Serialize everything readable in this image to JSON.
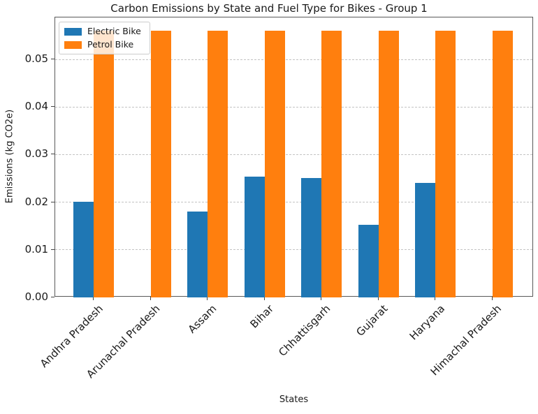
{
  "chart_data": {
    "type": "bar",
    "title": "Carbon Emissions by State and Fuel Type for Bikes - Group 1",
    "xlabel": "States",
    "ylabel": "Emissions (kg CO2e)",
    "categories": [
      "Andhra Pradesh",
      "Arunachal Pradesh",
      "Assam",
      "Bihar",
      "Chhattisgarh",
      "Gujarat",
      "Haryana",
      "Himachal Pradesh"
    ],
    "series": [
      {
        "name": "Electric Bike",
        "color": "#1f77b4",
        "values": [
          0.0201,
          0,
          0.0181,
          0.0253,
          0.0251,
          0.0153,
          0.0241,
          0
        ]
      },
      {
        "name": "Petrol Bike",
        "color": "#ff7f0e",
        "values": [
          0.056,
          0.056,
          0.056,
          0.056,
          0.056,
          0.056,
          0.056,
          0.056
        ]
      }
    ],
    "ylim": [
      0,
      0.0588
    ],
    "yticks": [
      0,
      0.01,
      0.02,
      0.03,
      0.04,
      0.05
    ],
    "ytick_labels": [
      "0.00",
      "0.01",
      "0.02",
      "0.03",
      "0.04",
      "0.05"
    ],
    "grid": true,
    "grid_style": "dashed",
    "legend_position": "upper-left",
    "bar_width_fraction": 0.35
  }
}
